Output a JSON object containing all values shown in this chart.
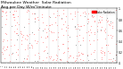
{
  "title": "Milwaukee Weather  Solar Radiation\nAvg per Day W/m²/minute",
  "title_fontsize": 3.2,
  "bg_color": "#ffffff",
  "plot_bg_color": "#ffffff",
  "grid_color": "#999999",
  "ylim": [
    0,
    1.0
  ],
  "xlim": [
    0,
    365
  ],
  "legend_label": "Solar Radiation",
  "legend_color": "#ff0000",
  "dot_color_red": "#ff0000",
  "dot_color_black": "#000000",
  "vline_positions": [
    31,
    59,
    90,
    120,
    151,
    181,
    212,
    243,
    273,
    304,
    334
  ],
  "x_tick_labels": [
    "1",
    "",
    "7",
    "",
    "1",
    "2",
    "1",
    "2",
    "1",
    "",
    "1",
    "2",
    "2",
    "3",
    "1",
    "1",
    "5",
    "1",
    "5",
    "7",
    "",
    ";"
  ],
  "y_tick_labels": [
    "1.",
    "0.8",
    "0.6",
    "0.4",
    "0.2",
    "0."
  ],
  "y_tick_positions": [
    1.0,
    0.8,
    0.6,
    0.4,
    0.2,
    0.0
  ],
  "seed": 1234,
  "n_red": 280,
  "n_black": 40
}
